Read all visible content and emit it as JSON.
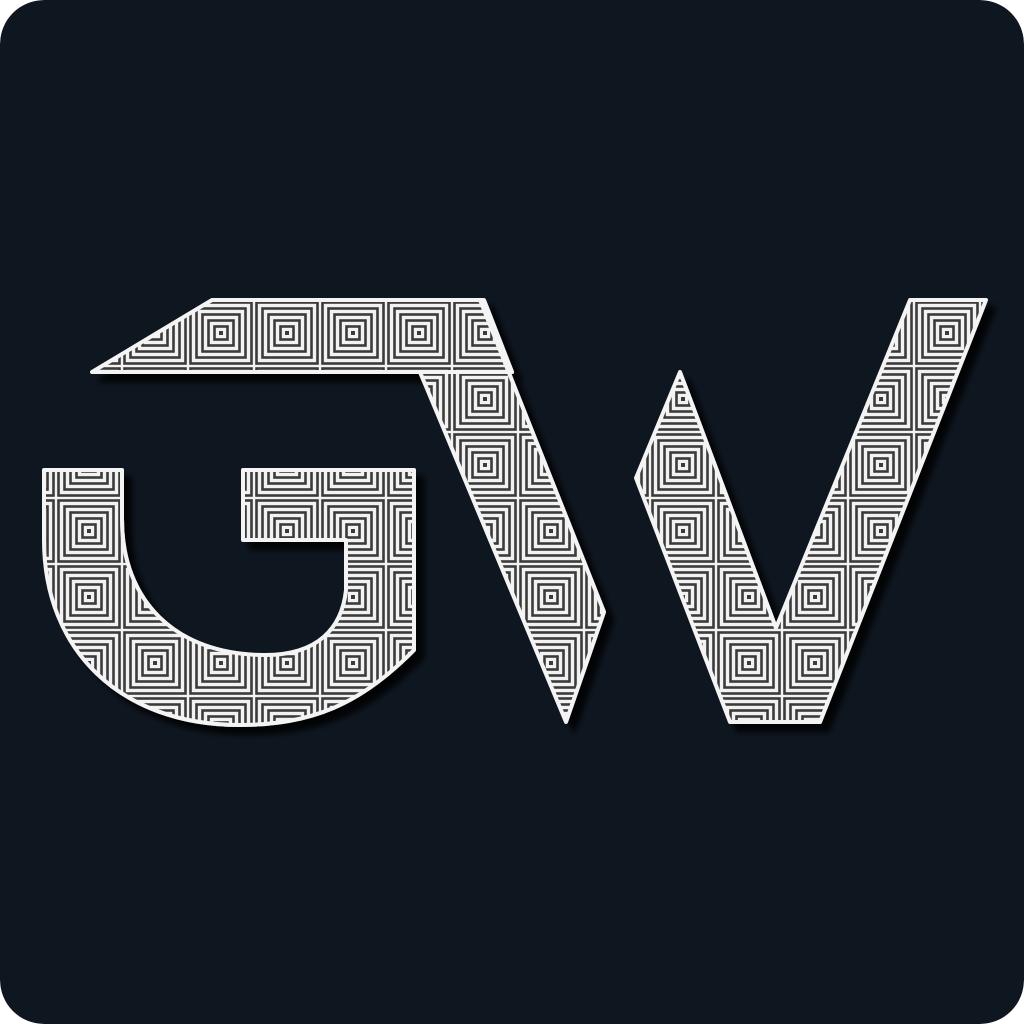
{
  "logo": {
    "text": "GW",
    "background_color": "#0e1620",
    "letter_fill_dark": "#3b3b3b",
    "letter_fill_light": "#f2f2f2",
    "letter_outline_color": "#f4f4f4",
    "letter_shadow_color": "#000000",
    "pattern": "concentric-squares"
  }
}
